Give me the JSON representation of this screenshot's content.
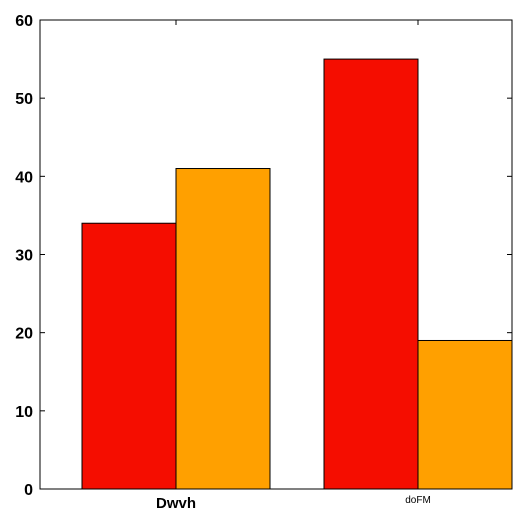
{
  "chart_data": {
    "type": "bar",
    "categories": [
      "Dwvh",
      "doFM"
    ],
    "series": [
      {
        "values": [
          34,
          55
        ],
        "color": "#f50d00"
      },
      {
        "values": [
          41,
          19
        ],
        "color": "#ffa000"
      }
    ],
    "title": "",
    "xlabel": "",
    "ylabel": "",
    "ylim": [
      0,
      60
    ],
    "yticks": [
      "0",
      "10",
      "20",
      "30",
      "40",
      "50",
      "60"
    ],
    "grid": false,
    "legend": "none"
  }
}
